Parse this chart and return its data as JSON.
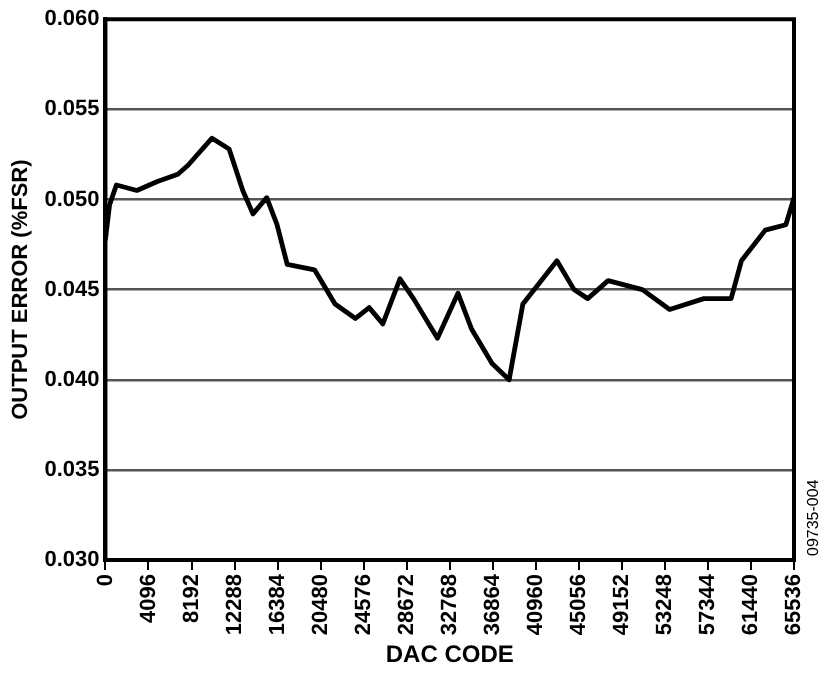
{
  "chart_data": {
    "type": "line",
    "xlabel": "DAC CODE",
    "ylabel": "OUTPUT ERROR (%FSR)",
    "annotations": [
      "09735-004"
    ],
    "xlim": [
      0,
      65536
    ],
    "xticks": [
      0,
      4096,
      8192,
      12288,
      16384,
      20480,
      24576,
      28672,
      32768,
      36864,
      40960,
      45056,
      49152,
      53248,
      57344,
      61440,
      65536
    ],
    "ylim": [
      0.03,
      0.06
    ],
    "yticks": [
      {
        "value": 0.03,
        "label": "0.030"
      },
      {
        "value": 0.035,
        "label": "0.035"
      },
      {
        "value": 0.04,
        "label": "0.040"
      },
      {
        "value": 0.045,
        "label": "0.045"
      },
      {
        "value": 0.05,
        "label": "0.050"
      },
      {
        "value": 0.055,
        "label": "0.055"
      },
      {
        "value": 0.06,
        "label": "0.060"
      }
    ],
    "grid": "y",
    "legend": false,
    "marker": "none",
    "line_style": "solid",
    "series": [
      {
        "color": "#000000",
        "x": [
          0,
          390,
          1040,
          2990,
          4940,
          6890,
          7860,
          10140,
          11770,
          13070,
          14040,
          15350,
          16330,
          17300,
          19900,
          21850,
          23800,
          25100,
          26400,
          28030,
          29320,
          31600,
          33550,
          34860,
          36800,
          38420,
          39730,
          42970,
          44600,
          45900,
          47840,
          51100,
          53700,
          56950,
          59550,
          60530,
          62800,
          64760,
          65536
        ],
        "values": [
          0.0478,
          0.0497,
          0.0508,
          0.0505,
          0.051,
          0.0514,
          0.0519,
          0.0534,
          0.0528,
          0.0505,
          0.0492,
          0.0501,
          0.0486,
          0.0464,
          0.0461,
          0.0442,
          0.0434,
          0.044,
          0.0431,
          0.0456,
          0.0445,
          0.0423,
          0.0448,
          0.0428,
          0.0409,
          0.04,
          0.0442,
          0.0466,
          0.045,
          0.0445,
          0.0455,
          0.045,
          0.0439,
          0.0445,
          0.0445,
          0.0466,
          0.0483,
          0.0486,
          0.0501
        ]
      }
    ]
  }
}
